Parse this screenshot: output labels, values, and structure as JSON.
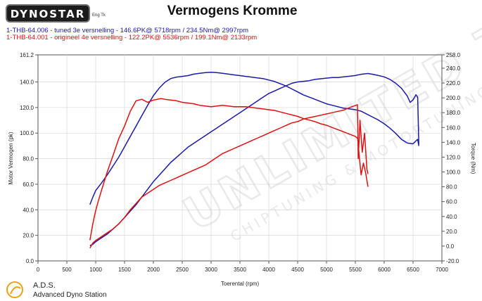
{
  "header": {
    "logo_text": "DYNOSTAR",
    "logo_sub": "Eng Tk"
  },
  "footer": {
    "ads_name": "A.D.S.",
    "ads_desc": "Advanced Dyno Station"
  },
  "watermark_text": "UNLIMITED TUNING",
  "watermark_sub": "CHIPTUNING & MOTORTUNING",
  "colors": {
    "series_tuned": "#1a1aaa",
    "series_original": "#dd1111",
    "grid": "#d0d0d0"
  },
  "chart_data": {
    "type": "line",
    "title": "Vermogens Kromme",
    "xlabel": "Toerental (rpm)",
    "ylabel": "Motor Vermogen (pk)",
    "y2label": "Torque (Nm)",
    "xlim": [
      0,
      7000
    ],
    "ylim": [
      0,
      161.2
    ],
    "y2lim": [
      -20,
      258
    ],
    "x_ticks": [
      "0",
      "500",
      "1000",
      "1500",
      "2000",
      "2500",
      "3000",
      "3500",
      "4000",
      "4500",
      "5000",
      "5500",
      "6000",
      "6500",
      "7000"
    ],
    "y_ticks": [
      "0.0",
      "20.0",
      "40.0",
      "60.0",
      "80.0",
      "100.0",
      "120.0",
      "140.0",
      "161.2"
    ],
    "y2_ticks": [
      "-20.0",
      "0.0",
      "20.0",
      "40.0",
      "60.0",
      "80.0",
      "100.0",
      "120.0",
      "140.0",
      "160.0",
      "180.0",
      "200.0",
      "220.0",
      "240.0",
      "258.0"
    ],
    "grid": true,
    "series": [
      {
        "name": "1-THB-64.006 - tuned 3e versnelling - 146.6PK@ 5718rpm / 234.5Nm@ 2997rpm",
        "color": "#1a1aaa",
        "power": {
          "x": [
            900,
            950,
            1000,
            1100,
            1200,
            1300,
            1400,
            1500,
            1600,
            1700,
            1800,
            1900,
            2000,
            2100,
            2200,
            2300,
            2400,
            2500,
            2600,
            2700,
            2800,
            2900,
            3000,
            3100,
            3200,
            3300,
            3400,
            3500,
            3600,
            3700,
            3800,
            3900,
            4000,
            4100,
            4200,
            4300,
            4400,
            4500,
            4600,
            4700,
            4800,
            4900,
            5000,
            5100,
            5200,
            5300,
            5400,
            5500,
            5600,
            5718,
            5800,
            5900,
            6000,
            6100,
            6200,
            6300,
            6400,
            6450,
            6500,
            6550,
            6580,
            6600
          ],
          "y": [
            12,
            13,
            15,
            18,
            21,
            25,
            29,
            34,
            39,
            44,
            50,
            56,
            62,
            67,
            72,
            77,
            81,
            85,
            89,
            92,
            95,
            98,
            101,
            104,
            107,
            110,
            113,
            116,
            119,
            122,
            125,
            128,
            131,
            133,
            135,
            137,
            139,
            140,
            140.5,
            141,
            142,
            142.5,
            143,
            143.5,
            143.5,
            144,
            144.5,
            145,
            146,
            146.6,
            146,
            145,
            144,
            142,
            139,
            135,
            129,
            124,
            126,
            130,
            128,
            91
          ]
        },
        "torque": {
          "x": [
            900,
            950,
            1000,
            1100,
            1200,
            1300,
            1400,
            1500,
            1600,
            1700,
            1800,
            1900,
            2000,
            2100,
            2200,
            2300,
            2400,
            2500,
            2600,
            2700,
            2800,
            2900,
            2997,
            3100,
            3200,
            3300,
            3400,
            3500,
            3600,
            3700,
            3800,
            3900,
            4000,
            4100,
            4200,
            4300,
            4400,
            4500,
            4600,
            4700,
            4800,
            4900,
            5000,
            5100,
            5200,
            5300,
            5400,
            5500,
            5600,
            5700,
            5800,
            5900,
            6000,
            6100,
            6200,
            6300,
            6400,
            6500,
            6550,
            6580,
            6600
          ],
          "y": [
            56,
            66,
            75,
            85,
            96,
            108,
            120,
            134,
            148,
            162,
            176,
            190,
            203,
            213,
            221,
            226,
            228,
            229,
            230,
            232,
            233,
            234,
            234.5,
            234,
            233,
            232,
            231,
            230,
            229,
            228,
            227,
            226,
            224,
            222,
            219,
            216,
            212,
            208,
            204,
            201,
            198,
            195,
            192,
            190,
            188,
            186,
            185,
            184,
            182,
            178,
            174,
            170,
            165,
            159,
            152,
            144,
            139,
            138,
            142,
            144,
            135
          ]
        }
      },
      {
        "name": "1-THB-64.001 - origineel 4e versnelling - 122.2PK@ 5536rpm / 199.1Nm@ 2133rpm",
        "color": "#dd1111",
        "power": {
          "x": [
            900,
            950,
            1000,
            1100,
            1200,
            1300,
            1400,
            1500,
            1600,
            1700,
            1800,
            1900,
            2000,
            2100,
            2200,
            2300,
            2400,
            2500,
            2600,
            2700,
            2800,
            2900,
            3000,
            3100,
            3200,
            3300,
            3400,
            3500,
            3600,
            3700,
            3800,
            3900,
            4000,
            4100,
            4200,
            4300,
            4400,
            4500,
            4600,
            4700,
            4800,
            4900,
            5000,
            5100,
            5200,
            5300,
            5400,
            5536,
            5550,
            5580,
            5620,
            5660,
            5700,
            5720
          ],
          "y": [
            10,
            14,
            16,
            19,
            22,
            25,
            29,
            34,
            40,
            45,
            50,
            53,
            56,
            59,
            61,
            63,
            65,
            67,
            69,
            71,
            73,
            75,
            78,
            81,
            84,
            86,
            88,
            90,
            92,
            94,
            96,
            98,
            100,
            102,
            104,
            106,
            108,
            109,
            111,
            112,
            113,
            114,
            115,
            116,
            117,
            118,
            120,
            122.2,
            80,
            110,
            85,
            100,
            72,
            68
          ]
        },
        "torque": {
          "x": [
            900,
            950,
            1000,
            1050,
            1100,
            1200,
            1300,
            1400,
            1500,
            1600,
            1700,
            1800,
            1900,
            2000,
            2133,
            2200,
            2300,
            2400,
            2500,
            2600,
            2700,
            2800,
            2900,
            3000,
            3100,
            3200,
            3300,
            3400,
            3500,
            3600,
            3700,
            3800,
            3900,
            4000,
            4100,
            4200,
            4300,
            4400,
            4500,
            4600,
            4700,
            4800,
            4900,
            5000,
            5100,
            5200,
            5300,
            5400,
            5500,
            5540,
            5570,
            5600,
            5640,
            5680,
            5720
          ],
          "y": [
            8,
            30,
            48,
            62,
            75,
            100,
            122,
            145,
            162,
            182,
            196,
            198,
            194,
            197,
            199.1,
            198,
            197,
            196,
            194,
            193,
            192,
            190,
            189,
            188,
            189,
            190,
            189,
            188,
            188,
            188,
            187,
            186,
            185,
            184,
            183,
            181,
            179,
            177,
            175,
            172,
            170,
            168,
            165,
            163,
            160,
            157,
            154,
            151,
            148,
            145,
            120,
            96,
            112,
            98,
            80
          ]
        }
      }
    ]
  }
}
